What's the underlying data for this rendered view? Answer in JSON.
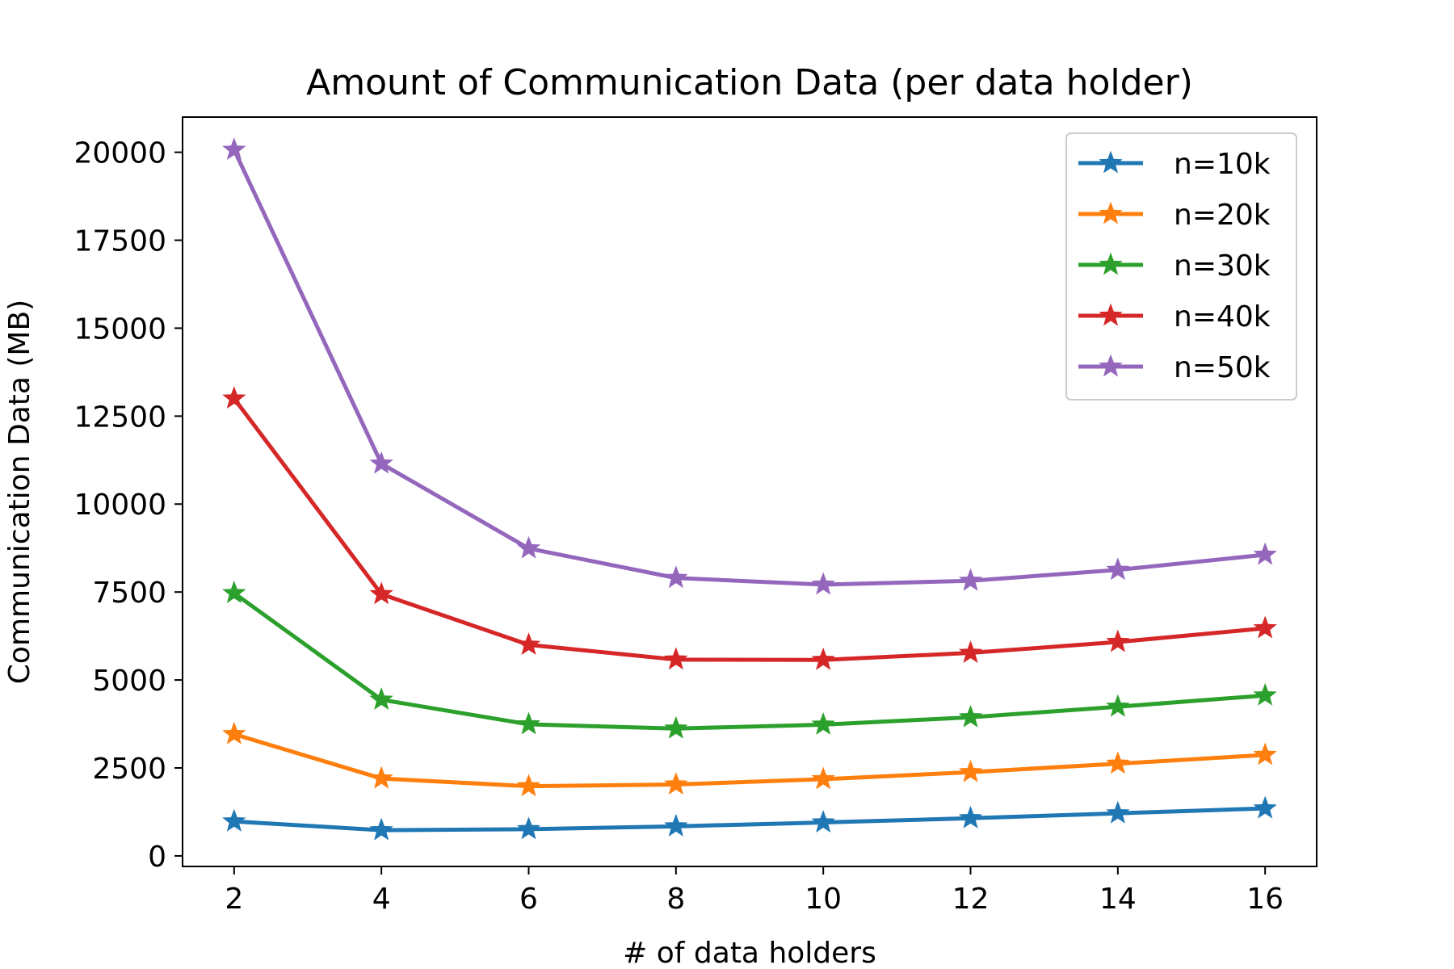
{
  "chart_data": {
    "type": "line",
    "title": "Amount of Communication Data (per data holder)",
    "xlabel": "# of data holders",
    "ylabel": "Communication Data (MB)",
    "x": [
      2,
      4,
      6,
      8,
      10,
      12,
      14,
      16
    ],
    "xlim": [
      1.3,
      16.7
    ],
    "ylim": [
      -300,
      21000
    ],
    "xticks": [
      2,
      4,
      6,
      8,
      10,
      12,
      14,
      16
    ],
    "yticks": [
      0,
      2500,
      5000,
      7500,
      10000,
      12500,
      15000,
      17500,
      20000
    ],
    "marker": "star",
    "grid": false,
    "legend_position": "top-right",
    "series": [
      {
        "name": "n=10k",
        "color": "#1f77b4",
        "values": [
          980,
          730,
          760,
          840,
          950,
          1070,
          1210,
          1350
        ]
      },
      {
        "name": "n=20k",
        "color": "#ff7f0e",
        "values": [
          3460,
          2200,
          1980,
          2030,
          2180,
          2380,
          2620,
          2870
        ]
      },
      {
        "name": "n=30k",
        "color": "#2ca02c",
        "values": [
          7470,
          4440,
          3740,
          3620,
          3730,
          3940,
          4240,
          4560
        ]
      },
      {
        "name": "n=40k",
        "color": "#d62728",
        "values": [
          13000,
          7440,
          6000,
          5580,
          5570,
          5770,
          6080,
          6470
        ]
      },
      {
        "name": "n=50k",
        "color": "#9467bd",
        "values": [
          20070,
          11150,
          8740,
          7900,
          7710,
          7820,
          8130,
          8560
        ]
      }
    ]
  }
}
